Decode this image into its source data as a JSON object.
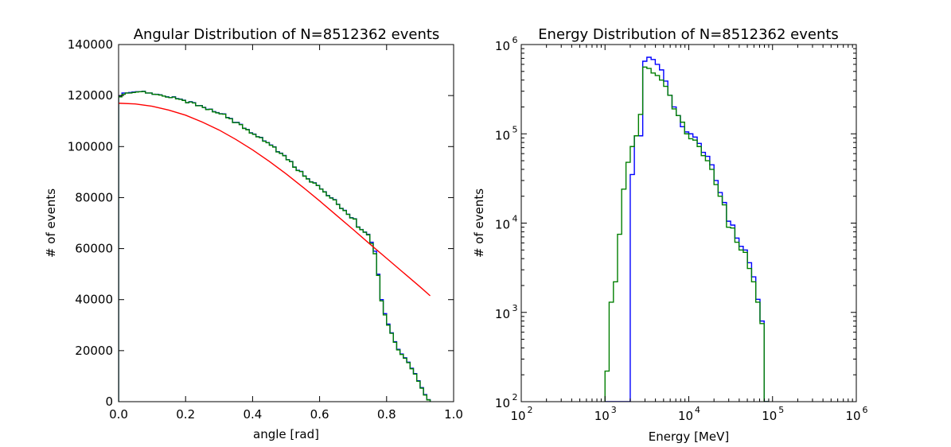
{
  "chart_data": [
    {
      "type": "line",
      "title": "Angular Distribution of N=8512362 events",
      "xlabel": "angle [rad]",
      "ylabel": "# of events",
      "xlim": [
        0.0,
        1.0
      ],
      "ylim": [
        0,
        140000
      ],
      "x_ticks": [
        "0.0",
        "0.2",
        "0.4",
        "0.6",
        "0.8",
        "1.0"
      ],
      "y_ticks": [
        "0",
        "20000",
        "40000",
        "60000",
        "80000",
        "100000",
        "120000",
        "140000"
      ],
      "grid": false,
      "series": [
        {
          "style": "step",
          "color": "#0000ff",
          "bin_edges": [
            0,
            0.01,
            0.02,
            0.03,
            0.04,
            0.05,
            0.06,
            0.07,
            0.08,
            0.09,
            0.1,
            0.11,
            0.12,
            0.13,
            0.14,
            0.15,
            0.16,
            0.17,
            0.18,
            0.19,
            0.2,
            0.21,
            0.22,
            0.23,
            0.24,
            0.25,
            0.26,
            0.27,
            0.28,
            0.29,
            0.3,
            0.31,
            0.32,
            0.33,
            0.34,
            0.35,
            0.36,
            0.37,
            0.38,
            0.39,
            0.4,
            0.41,
            0.42,
            0.43,
            0.44,
            0.45,
            0.46,
            0.47,
            0.48,
            0.49,
            0.5,
            0.51,
            0.52,
            0.53,
            0.54,
            0.55,
            0.56,
            0.57,
            0.58,
            0.59,
            0.6,
            0.61,
            0.62,
            0.63,
            0.64,
            0.65,
            0.66,
            0.67,
            0.68,
            0.69,
            0.7,
            0.71,
            0.72,
            0.73,
            0.74,
            0.75,
            0.76,
            0.77,
            0.78,
            0.79,
            0.8,
            0.81,
            0.82,
            0.83,
            0.84,
            0.85,
            0.86,
            0.87,
            0.88,
            0.89,
            0.9,
            0.91,
            0.92,
            0.93
          ],
          "counts": [
            120000,
            121000,
            121000,
            121200,
            121400,
            121500,
            121500,
            121700,
            121000,
            121000,
            120500,
            120500,
            120300,
            119800,
            119500,
            119200,
            119500,
            118800,
            118600,
            118200,
            117200,
            117600,
            117200,
            116100,
            116100,
            115400,
            114600,
            114700,
            113700,
            113300,
            112900,
            112800,
            111400,
            111000,
            109500,
            109500,
            108700,
            107200,
            106700,
            105400,
            104900,
            103900,
            103600,
            102200,
            101600,
            100600,
            99900,
            98000,
            97400,
            96500,
            94900,
            94200,
            92000,
            90700,
            90300,
            88500,
            87400,
            86200,
            85800,
            84800,
            83400,
            82300,
            80800,
            79900,
            79200,
            77400,
            75800,
            75000,
            73500,
            72100,
            71700,
            68500,
            67500,
            66500,
            65600,
            62500,
            59000,
            50000,
            40000,
            34500,
            30400,
            27000,
            23500,
            20500,
            18700,
            17200,
            15500,
            13100,
            11000,
            8200,
            5500,
            2800,
            800,
            0
          ]
        },
        {
          "style": "step",
          "color": "#007f00",
          "bin_edges": [
            0,
            0.01,
            0.02,
            0.03,
            0.04,
            0.05,
            0.06,
            0.07,
            0.08,
            0.09,
            0.1,
            0.11,
            0.12,
            0.13,
            0.14,
            0.15,
            0.16,
            0.17,
            0.18,
            0.19,
            0.2,
            0.21,
            0.22,
            0.23,
            0.24,
            0.25,
            0.26,
            0.27,
            0.28,
            0.29,
            0.3,
            0.31,
            0.32,
            0.33,
            0.34,
            0.35,
            0.36,
            0.37,
            0.38,
            0.39,
            0.4,
            0.41,
            0.42,
            0.43,
            0.44,
            0.45,
            0.46,
            0.47,
            0.48,
            0.49,
            0.5,
            0.51,
            0.52,
            0.53,
            0.54,
            0.55,
            0.56,
            0.57,
            0.58,
            0.59,
            0.6,
            0.61,
            0.62,
            0.63,
            0.64,
            0.65,
            0.66,
            0.67,
            0.68,
            0.69,
            0.7,
            0.71,
            0.72,
            0.73,
            0.74,
            0.75,
            0.76,
            0.77,
            0.78,
            0.79,
            0.8,
            0.81,
            0.82,
            0.83,
            0.84,
            0.85,
            0.86,
            0.87,
            0.88,
            0.89,
            0.9,
            0.91,
            0.92,
            0.93
          ],
          "counts": [
            119500,
            120500,
            121000,
            121000,
            121200,
            121400,
            121500,
            121600,
            121000,
            121000,
            120500,
            120400,
            120200,
            119800,
            119400,
            119200,
            119400,
            118700,
            118500,
            118100,
            117200,
            117500,
            117100,
            116000,
            116000,
            115300,
            114500,
            114600,
            113600,
            113200,
            112800,
            112700,
            111300,
            110900,
            109400,
            109400,
            108600,
            107100,
            106600,
            105300,
            104800,
            103800,
            103500,
            102100,
            101500,
            100500,
            99800,
            97900,
            97300,
            96400,
            94800,
            94100,
            91900,
            90600,
            90200,
            88400,
            87300,
            86100,
            85700,
            84700,
            83300,
            82200,
            80700,
            79800,
            79100,
            77300,
            75700,
            74900,
            73400,
            72000,
            71600,
            68400,
            67400,
            66400,
            65400,
            62000,
            58000,
            49500,
            39500,
            34000,
            30000,
            26800,
            23300,
            20300,
            18500,
            17000,
            15300,
            12900,
            10800,
            8000,
            5300,
            2600,
            700,
            0
          ]
        },
        {
          "style": "line",
          "color": "#ff0000",
          "x": [
            0.0,
            0.05,
            0.1,
            0.15,
            0.2,
            0.25,
            0.3,
            0.35,
            0.4,
            0.45,
            0.5,
            0.55,
            0.6,
            0.65,
            0.7,
            0.75,
            0.8,
            0.85,
            0.9,
            0.93
          ],
          "y": [
            117000,
            116700,
            115800,
            114300,
            112300,
            109600,
            106500,
            102800,
            98700,
            94200,
            89300,
            84100,
            78700,
            73100,
            67500,
            61800,
            56200,
            50600,
            45000,
            41500
          ]
        }
      ]
    },
    {
      "type": "line",
      "title": "Energy Distribution of N=8512362 events",
      "xlabel": "Energy [MeV]",
      "ylabel": "# of events",
      "xlim": [
        100,
        1000000
      ],
      "ylim": [
        100,
        1000000
      ],
      "xscale": "log",
      "yscale": "log",
      "x_ticks": [
        {
          "base": "10",
          "exp": "2"
        },
        {
          "base": "10",
          "exp": "3"
        },
        {
          "base": "10",
          "exp": "4"
        },
        {
          "base": "10",
          "exp": "5"
        },
        {
          "base": "10",
          "exp": "6"
        }
      ],
      "y_ticks": [
        {
          "base": "10",
          "exp": "2"
        },
        {
          "base": "10",
          "exp": "3"
        },
        {
          "base": "10",
          "exp": "4"
        },
        {
          "base": "10",
          "exp": "5"
        },
        {
          "base": "10",
          "exp": "6"
        }
      ],
      "grid": false,
      "series": [
        {
          "style": "step",
          "color": "#0000ff",
          "bin_edges": [
            1000,
            1120,
            1260,
            1410,
            1580,
            1780,
            2000,
            2240,
            2510,
            2820,
            3160,
            3550,
            3980,
            4470,
            5010,
            5620,
            6310,
            7080,
            7940,
            8910,
            10000,
            11200,
            12600,
            14100,
            15800,
            17800,
            20000,
            22400,
            25100,
            28200,
            31600,
            35500,
            39800,
            44700,
            50100,
            56200,
            63100,
            70800,
            79400,
            89100
          ],
          "counts": [
            100,
            100,
            100,
            100,
            100,
            100,
            35000,
            95000,
            95000,
            650000,
            720000,
            680000,
            600000,
            520000,
            390000,
            270000,
            200000,
            160000,
            120000,
            105000,
            100000,
            92000,
            78000,
            62000,
            56000,
            45000,
            30000,
            22000,
            17000,
            10500,
            9500,
            6800,
            5500,
            5000,
            3600,
            2500,
            1400,
            800,
            100
          ]
        },
        {
          "style": "step",
          "color": "#007f00",
          "bin_edges": [
            1000,
            1120,
            1260,
            1410,
            1580,
            1780,
            2000,
            2240,
            2510,
            2820,
            3160,
            3550,
            3980,
            4470,
            5010,
            5620,
            6310,
            7080,
            7940,
            8910,
            10000,
            11200,
            12600,
            14100,
            15800,
            17800,
            20000,
            22400,
            25100,
            28200,
            31600,
            35500,
            39800,
            44700,
            50100,
            56200,
            63100,
            70800,
            79400,
            89100
          ],
          "counts": [
            220,
            1300,
            2200,
            7500,
            24000,
            48000,
            72000,
            95000,
            165000,
            560000,
            540000,
            480000,
            450000,
            400000,
            340000,
            270000,
            190000,
            160000,
            135000,
            100000,
            88000,
            85000,
            72000,
            57000,
            50000,
            40000,
            27000,
            20000,
            16000,
            9000,
            8800,
            6100,
            5000,
            4700,
            3100,
            2200,
            1300,
            750,
            100
          ]
        }
      ]
    }
  ]
}
